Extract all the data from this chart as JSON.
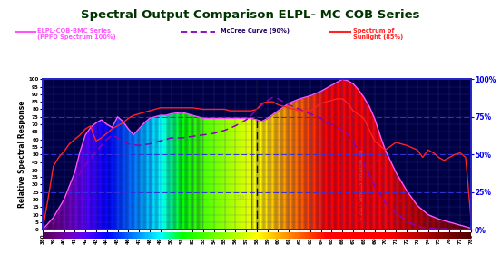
{
  "title": "Spectral Output Comparison ELPL- MC COB Series",
  "title_color": "#003300",
  "ylabel": "Relative Spectral Response",
  "xmin": 380,
  "xmax": 780,
  "ymin": 0,
  "ymax": 100,
  "yticks_left": [
    0,
    5,
    10,
    15,
    20,
    25,
    30,
    35,
    39,
    45,
    50,
    55,
    60,
    65,
    70,
    75,
    80,
    85,
    90,
    95,
    100
  ],
  "ytick_right_labels": [
    "0%",
    "25%",
    "50%",
    "75%",
    "100%"
  ],
  "ytick_right_vals": [
    0,
    25,
    50,
    75,
    100
  ],
  "hlines": [
    25,
    50,
    75,
    100
  ],
  "vline_dashed": 580,
  "fig_bg": "#0000bb",
  "plot_bg": "#000044",
  "border_color": "#2222cc",
  "legend1_color": "#ff55ff",
  "legend2_color": "#8800bb",
  "legend3_color": "#ff2222",
  "ppfd_pts_x": [
    380,
    390,
    400,
    410,
    415,
    420,
    425,
    430,
    435,
    440,
    445,
    450,
    455,
    460,
    465,
    470,
    475,
    480,
    485,
    490,
    495,
    500,
    510,
    515,
    520,
    530,
    540,
    545,
    550,
    555,
    560,
    565,
    570,
    575,
    580,
    585,
    590,
    600,
    610,
    620,
    630,
    640,
    650,
    655,
    660,
    665,
    670,
    675,
    680,
    685,
    690,
    695,
    700,
    710,
    720,
    730,
    740,
    750,
    760,
    770,
    780
  ],
  "ppfd_pts_y": [
    0,
    8,
    20,
    38,
    52,
    63,
    68,
    71,
    73,
    70,
    68,
    75,
    72,
    67,
    63,
    67,
    71,
    74,
    75,
    76,
    76,
    77,
    78,
    77,
    76,
    74,
    74,
    74,
    74,
    74,
    74,
    74,
    74,
    74,
    73,
    72,
    74,
    79,
    84,
    87,
    89,
    92,
    96,
    98,
    100,
    99,
    97,
    93,
    88,
    82,
    74,
    63,
    53,
    38,
    26,
    16,
    10,
    7,
    5,
    3,
    1
  ],
  "mccree_pts_x": [
    380,
    390,
    400,
    410,
    420,
    430,
    440,
    445,
    450,
    460,
    470,
    480,
    490,
    500,
    510,
    520,
    530,
    540,
    550,
    560,
    570,
    575,
    580,
    585,
    590,
    595,
    600,
    610,
    620,
    630,
    640,
    645,
    650,
    660,
    665,
    670,
    680,
    690,
    700,
    710,
    720,
    730,
    740,
    780
  ],
  "mccree_pts_y": [
    0,
    4,
    18,
    32,
    43,
    52,
    60,
    63,
    61,
    57,
    56,
    57,
    59,
    61,
    61,
    62,
    63,
    64,
    66,
    69,
    73,
    76,
    80,
    83,
    86,
    88,
    87,
    83,
    80,
    77,
    74,
    71,
    70,
    66,
    63,
    59,
    44,
    29,
    18,
    11,
    6,
    2,
    1,
    0
  ],
  "sun_pts_x": [
    380,
    385,
    390,
    395,
    400,
    405,
    410,
    415,
    420,
    425,
    427,
    430,
    435,
    440,
    445,
    450,
    455,
    460,
    465,
    470,
    475,
    480,
    485,
    490,
    495,
    500,
    505,
    510,
    520,
    530,
    540,
    545,
    550,
    555,
    560,
    565,
    570,
    575,
    580,
    585,
    590,
    595,
    600,
    610,
    615,
    620,
    630,
    640,
    650,
    655,
    660,
    665,
    670,
    680,
    690,
    700,
    710,
    720,
    730,
    735,
    740,
    745,
    750,
    755,
    760,
    765,
    770,
    775,
    780
  ],
  "sun_pts_y": [
    0,
    20,
    42,
    48,
    52,
    57,
    60,
    63,
    67,
    69,
    64,
    59,
    61,
    64,
    67,
    69,
    71,
    74,
    76,
    77,
    78,
    79,
    80,
    81,
    81,
    81,
    81,
    81,
    81,
    80,
    80,
    80,
    80,
    79,
    79,
    79,
    79,
    79,
    80,
    84,
    85,
    85,
    83,
    81,
    80,
    79,
    79,
    84,
    86,
    87,
    87,
    84,
    79,
    74,
    59,
    53,
    58,
    56,
    53,
    48,
    53,
    51,
    48,
    46,
    48,
    50,
    51,
    48,
    8
  ]
}
